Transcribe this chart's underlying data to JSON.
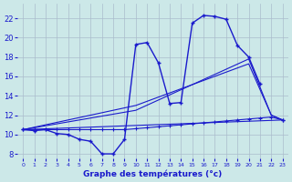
{
  "title": "Graphe des températures (°c)",
  "background_color": "#cce8e8",
  "grid_color": "#aabccc",
  "line_color": "#1a1acc",
  "hours": [
    0,
    1,
    2,
    3,
    4,
    5,
    6,
    7,
    8,
    9,
    10,
    11,
    12,
    13,
    14,
    15,
    16,
    17,
    18,
    19,
    20,
    21,
    22,
    23
  ],
  "temp_actual_y": [
    10.5,
    10.4,
    10.5,
    10.1,
    10.0,
    9.5,
    9.3,
    8.0,
    8.0,
    9.5,
    19.3,
    19.5,
    17.4,
    13.2,
    13.3,
    21.5,
    22.3,
    22.2,
    21.9,
    19.2,
    18.0,
    15.2,
    null,
    11.5
  ],
  "temp_min_y": [
    10.5,
    10.5,
    10.5,
    10.5,
    10.5,
    10.5,
    10.5,
    10.5,
    10.5,
    10.5,
    10.6,
    10.7,
    10.8,
    10.9,
    11.0,
    11.1,
    11.2,
    11.3,
    11.4,
    11.5,
    11.6,
    11.7,
    11.8,
    11.5
  ],
  "trend1_x": [
    0,
    23
  ],
  "trend1_y": [
    10.5,
    11.5
  ],
  "trend2_x": [
    0,
    10,
    20,
    22,
    23
  ],
  "trend2_y": [
    10.5,
    12.5,
    17.8,
    12.0,
    11.5
  ],
  "trend3_x": [
    0,
    10,
    20,
    22,
    23
  ],
  "trend3_y": [
    10.5,
    13.0,
    17.3,
    12.0,
    11.5
  ],
  "ylim": [
    7.5,
    23.5
  ],
  "yticks": [
    8,
    10,
    12,
    14,
    16,
    18,
    20,
    22
  ],
  "xlim": [
    -0.5,
    23.5
  ]
}
